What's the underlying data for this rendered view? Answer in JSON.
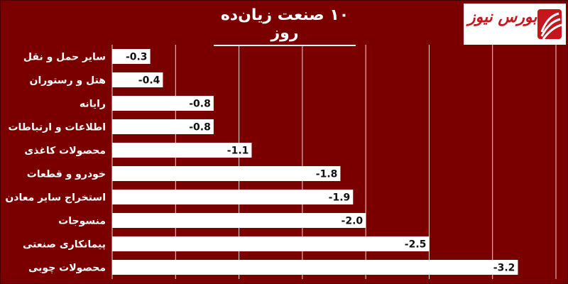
{
  "logo": {
    "text": "بورس نیوز",
    "colors": {
      "red": "#c4161c",
      "background": "#ffffff"
    }
  },
  "colors": {
    "background": "#7a0000",
    "bar": "#ffffff",
    "grid": "#ffffff",
    "label": "#ffffff",
    "value": "#111111"
  },
  "chart_data": {
    "type": "bar",
    "orientation": "horizontal",
    "title": "۱۰ صنعت زیان‌ده روز",
    "categories": [
      "سایر حمل و نقل",
      "هتل و رستوران",
      "رایانه",
      "اطلاعات و ارتباطات",
      "محصولات کاغذی",
      "خودرو و قطعات",
      "استخراج سایر معادن",
      "منسوجات",
      "پیمانکاری صنعتی",
      "محصولات چوبی"
    ],
    "values": [
      -0.3,
      -0.4,
      -0.8,
      -0.8,
      -1.1,
      -1.8,
      -1.9,
      -2.0,
      -2.5,
      -3.2
    ],
    "value_labels": [
      "-0.3",
      "-0.4",
      "-0.8",
      "-0.8",
      "-1.1",
      "-1.8",
      "-1.9",
      "-2.0",
      "-2.5",
      "-3.2"
    ],
    "xlim": [
      0,
      -3.5
    ],
    "grid": true,
    "legend": "none"
  }
}
